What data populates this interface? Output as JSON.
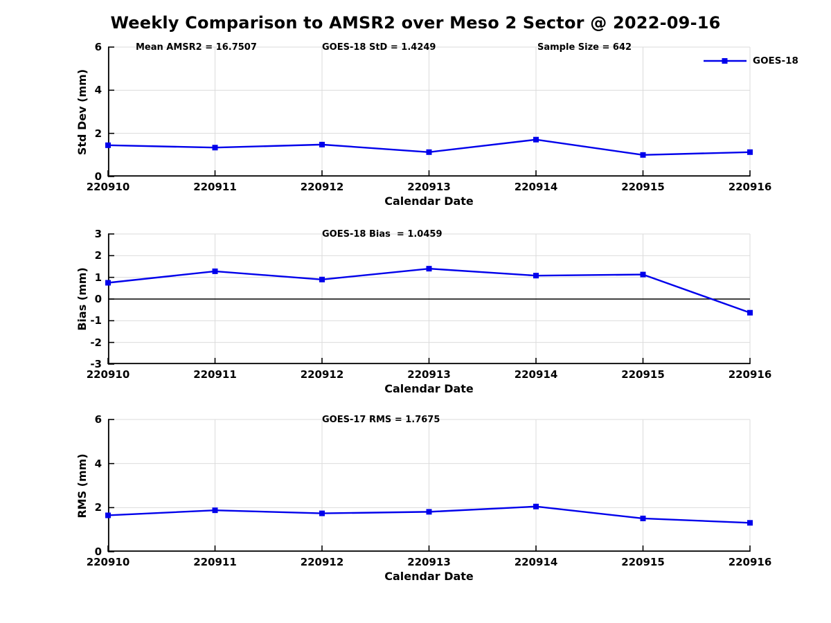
{
  "title": "Weekly Comparison to AMSR2 over Meso 2 Sector @ 2022-09-16",
  "legend": {
    "label": "GOES-18"
  },
  "colors": {
    "line": "#0000EB",
    "grid": "#DBDBDB",
    "axis": "#000000",
    "zero_line": "#000000",
    "text": "#000000",
    "background": "#FFFFFF"
  },
  "chart_data": [
    {
      "type": "line",
      "name": "std-dev-subplot",
      "ylabel": "Std Dev (mm)",
      "xlabel": "Calendar Date",
      "ylim": [
        0,
        6
      ],
      "yticks": [
        0,
        2,
        4,
        6
      ],
      "grid": true,
      "legend_position": "upper-right-outside",
      "categories": [
        "220910",
        "220911",
        "220912",
        "220913",
        "220914",
        "220915",
        "220916"
      ],
      "series": [
        {
          "name": "GOES-18",
          "marker": "square",
          "values": [
            1.45,
            1.34,
            1.48,
            1.13,
            1.71,
            1.0,
            1.13
          ]
        }
      ],
      "annotations": [
        {
          "text": "Mean AMSR2 = 16.7507"
        },
        {
          "text": "GOES-18 StD = 1.4249"
        },
        {
          "text": "Sample Size = 642"
        }
      ]
    },
    {
      "type": "line",
      "name": "bias-subplot",
      "ylabel": "Bias (mm)",
      "xlabel": "Calendar Date",
      "ylim": [
        -3,
        3
      ],
      "yticks": [
        -3,
        -2,
        -1,
        0,
        1,
        2,
        3
      ],
      "grid": true,
      "zero_line": true,
      "categories": [
        "220910",
        "220911",
        "220912",
        "220913",
        "220914",
        "220915",
        "220916"
      ],
      "series": [
        {
          "name": "GOES-18",
          "marker": "square",
          "values": [
            0.75,
            1.28,
            0.9,
            1.4,
            1.08,
            1.13,
            -0.63
          ]
        }
      ],
      "annotations": [
        {
          "text": "GOES-18 Bias  = 1.0459"
        }
      ]
    },
    {
      "type": "line",
      "name": "rms-subplot",
      "ylabel": "RMS (mm)",
      "xlabel": "Calendar Date",
      "ylim": [
        0,
        6
      ],
      "yticks": [
        0,
        2,
        4,
        6
      ],
      "grid": true,
      "categories": [
        "220910",
        "220911",
        "220912",
        "220913",
        "220914",
        "220915",
        "220916"
      ],
      "series": [
        {
          "name": "GOES-17",
          "marker": "square",
          "values": [
            1.65,
            1.88,
            1.74,
            1.81,
            2.05,
            1.51,
            1.31
          ]
        }
      ],
      "annotations": [
        {
          "text": "GOES-17 RMS = 1.7675"
        }
      ]
    }
  ]
}
